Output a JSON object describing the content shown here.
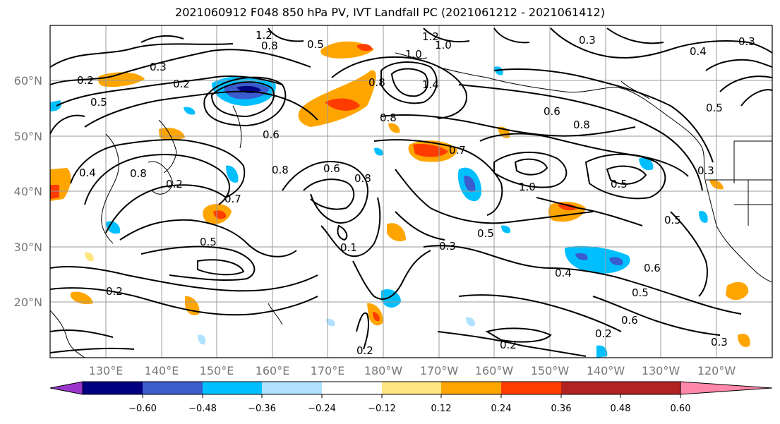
{
  "title": "2021060912 F048 850 hPa PV, IVT Landfall PC (2021061212 - 2021061412)",
  "lat_labels": [
    "60°N",
    "50°N",
    "40°N",
    "30°N",
    "20°N"
  ],
  "lon_labels": [
    "130°E",
    "140°E",
    "150°E",
    "160°E",
    "170°E",
    "180°W",
    "170°W",
    "160°W",
    "150°W",
    "140°W",
    "130°W",
    "120°W"
  ],
  "colorbar": {
    "ticks": [
      "−0.60",
      "−0.48",
      "−0.36",
      "−0.24",
      "−0.12",
      "0.12",
      "0.24",
      "0.36",
      "0.48",
      "0.60"
    ],
    "colors": [
      "#9a36cc",
      "#000080",
      "#3a5ccc",
      "#00bfff",
      "#b0e2ff",
      "#ffffff",
      "#ffe680",
      "#ffa500",
      "#ff3c00",
      "#b22222",
      "#ff88aa"
    ]
  },
  "contour_labels": [
    "0.2",
    "0.3",
    "0.2",
    "0.5",
    "1.2",
    "0.8",
    "0.5",
    "1.2",
    "1.0",
    "1.0",
    "0.8",
    "1.4",
    "0.3",
    "0.4",
    "0.3",
    "0.6",
    "0.8",
    "0.8",
    "0.7",
    "0.6",
    "0.8",
    "0.2",
    "0.7",
    "0.8",
    "1.0",
    "0.5",
    "0.5",
    "0.1",
    "0.3",
    "0.5",
    "0.2",
    "0.4",
    "0.5",
    "0.6",
    "0.6",
    "0.2",
    "0.2",
    "0.3",
    "0.5",
    "0.3",
    "0.5",
    "0.6",
    "0.8",
    "0.4",
    "0.2"
  ]
}
